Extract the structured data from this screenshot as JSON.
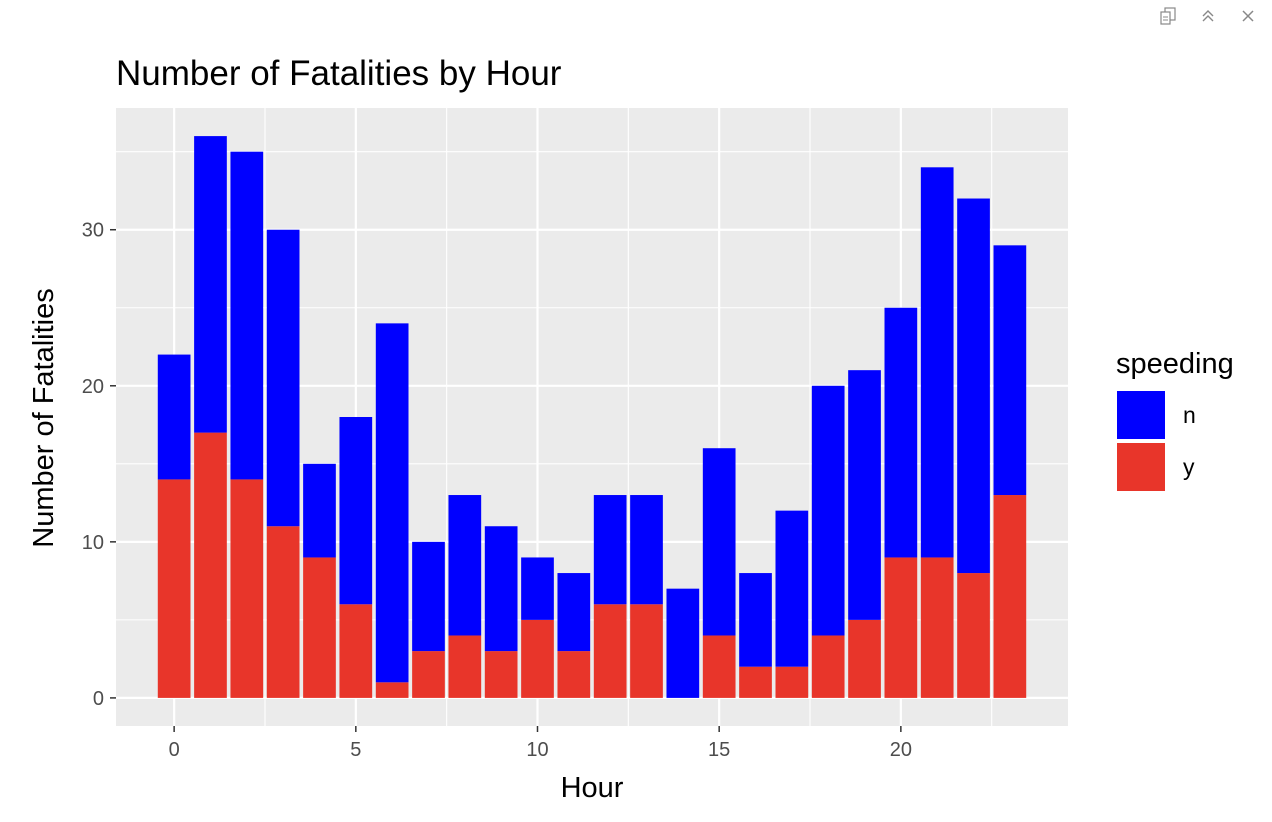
{
  "toolbar": {
    "icons": [
      "export-icon",
      "collapse-icon",
      "close-icon"
    ]
  },
  "colors": {
    "panel_bg": "#ebebeb",
    "grid": "#ffffff",
    "n": "#0000ff",
    "y": "#e8352a"
  },
  "chart_data": {
    "type": "bar",
    "stacked": true,
    "title": "Number of Fatalities by Hour",
    "xlabel": "Hour",
    "ylabel": "Number of Fatalities",
    "x": [
      0,
      1,
      2,
      3,
      4,
      5,
      6,
      7,
      8,
      9,
      10,
      11,
      12,
      13,
      14,
      15,
      16,
      17,
      18,
      19,
      20,
      21,
      22,
      23
    ],
    "series": [
      {
        "name": "y",
        "color": "#e8352a",
        "values": [
          14,
          17,
          14,
          11,
          9,
          6,
          1,
          3,
          4,
          3,
          5,
          3,
          6,
          6,
          0,
          4,
          2,
          2,
          4,
          5,
          9,
          9,
          8,
          13
        ]
      },
      {
        "name": "n",
        "color": "#0000ff",
        "values": [
          8,
          19,
          21,
          19,
          6,
          12,
          23,
          7,
          9,
          8,
          4,
          5,
          7,
          7,
          7,
          12,
          6,
          10,
          16,
          16,
          16,
          25,
          24,
          16
        ]
      }
    ],
    "xticks": [
      0,
      5,
      10,
      15,
      20
    ],
    "yticks": [
      0,
      10,
      20,
      30
    ],
    "xlim": [
      -1.6,
      24.6
    ],
    "ylim": [
      -1.8,
      37.8
    ],
    "grid": true,
    "legend": {
      "title": "speeding",
      "entries": [
        {
          "label": "n",
          "color": "#0000ff"
        },
        {
          "label": "y",
          "color": "#e8352a"
        }
      ],
      "position": "right"
    }
  }
}
